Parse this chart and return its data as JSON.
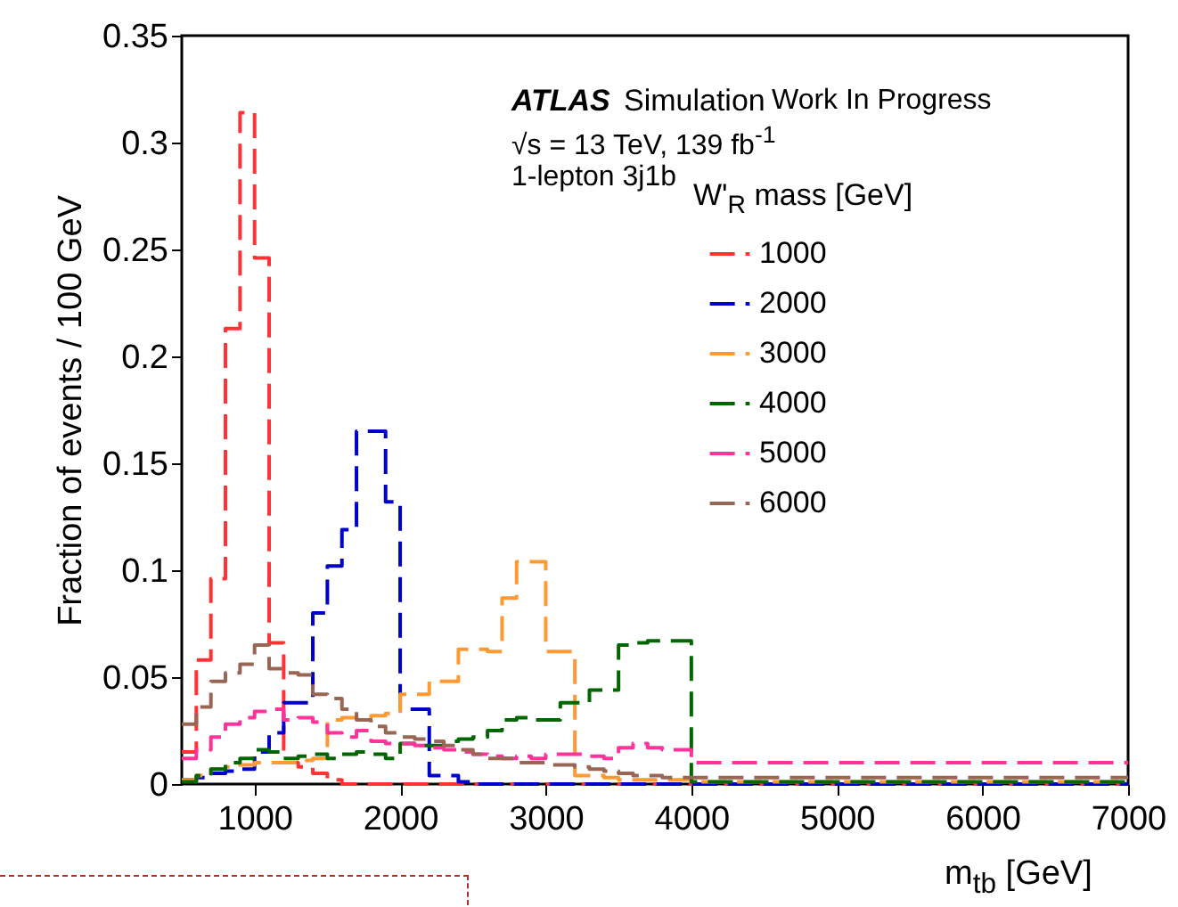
{
  "chart_data": {
    "type": "histogram",
    "xlabel": "m$_{tb}$ [GeV]",
    "ylabel": "Fraction of events / 100 GeV",
    "legend_title": "W'$_{R}$ mass [GeV]",
    "annotations": [
      "ATLAS",
      "Simulation",
      "Work In Progress",
      "√s = 13 TeV, 139 fb$^{-1}$",
      "1-lepton  3j1b"
    ],
    "bins": [
      500,
      600,
      700,
      800,
      900,
      1000,
      1100,
      1200,
      1300,
      1400,
      1500,
      1600,
      1700,
      1800,
      1900,
      2000,
      2100,
      2200,
      2300,
      2400,
      2500,
      2600,
      2700,
      2800,
      2900,
      3000,
      3100,
      3200,
      3300,
      3400,
      3500,
      3600,
      3700,
      3800,
      3900,
      4000,
      7000
    ],
    "series": [
      {
        "name": "1000",
        "color": "#ff3333",
        "values": [
          0.015,
          0.058,
          0.096,
          0.213,
          0.314,
          0.246,
          0.066,
          0.01,
          0.008,
          0.005,
          0.002,
          0,
          0,
          0,
          0,
          0,
          0,
          0,
          0,
          0,
          0,
          0,
          0,
          0,
          0,
          0,
          0,
          0,
          0,
          0,
          0,
          0,
          0,
          0,
          0,
          0
        ]
      },
      {
        "name": "2000",
        "color": "#0000cc",
        "values": [
          0.002,
          0.003,
          0.005,
          0.006,
          0.007,
          0.015,
          0.024,
          0.038,
          0.038,
          0.08,
          0.102,
          0.119,
          0.165,
          0.165,
          0.132,
          0.035,
          0.035,
          0.004,
          0.004,
          0.001,
          0,
          0,
          0,
          0,
          0,
          0,
          0,
          0,
          0,
          0,
          0,
          0,
          0,
          0,
          0,
          0
        ]
      },
      {
        "name": "3000",
        "color": "#ff9933",
        "values": [
          0.002,
          0.004,
          0.007,
          0.008,
          0.009,
          0.01,
          0.01,
          0.01,
          0.011,
          0.012,
          0.03,
          0.031,
          0.031,
          0.032,
          0.033,
          0.042,
          0.042,
          0.048,
          0.048,
          0.063,
          0.063,
          0.062,
          0.087,
          0.104,
          0.104,
          0.062,
          0.062,
          0.004,
          0.004,
          0.003,
          0.002,
          0.002,
          0.002,
          0.002,
          0.002,
          0.001
        ]
      },
      {
        "name": "4000",
        "color": "#006600",
        "values": [
          0.001,
          0.004,
          0.007,
          0.01,
          0.012,
          0.016,
          0.015,
          0.012,
          0.013,
          0.014,
          0.012,
          0.014,
          0.015,
          0.014,
          0.012,
          0.019,
          0.018,
          0.018,
          0.02,
          0.021,
          0.022,
          0.025,
          0.03,
          0.031,
          0.03,
          0.03,
          0.038,
          0.038,
          0.044,
          0.044,
          0.065,
          0.066,
          0.067,
          0.067,
          0.067,
          0.001
        ]
      },
      {
        "name": "5000",
        "color": "#ff3399",
        "values": [
          0.012,
          0.016,
          0.022,
          0.028,
          0.031,
          0.034,
          0.035,
          0.03,
          0.031,
          0.029,
          0.024,
          0.022,
          0.025,
          0.02,
          0.019,
          0.019,
          0.018,
          0.017,
          0.016,
          0.015,
          0.014,
          0.013,
          0.012,
          0.013,
          0.012,
          0.014,
          0.014,
          0.014,
          0.013,
          0.012,
          0.017,
          0.019,
          0.017,
          0.016,
          0.016,
          0.01
        ]
      },
      {
        "name": "6000",
        "color": "#996655",
        "values": [
          0.028,
          0.036,
          0.048,
          0.052,
          0.056,
          0.065,
          0.054,
          0.052,
          0.051,
          0.042,
          0.04,
          0.035,
          0.03,
          0.027,
          0.024,
          0.022,
          0.021,
          0.02,
          0.018,
          0.016,
          0.014,
          0.012,
          0.012,
          0.01,
          0.01,
          0.009,
          0.009,
          0.008,
          0.007,
          0.006,
          0.005,
          0.004,
          0.004,
          0.003,
          0.003,
          0.003
        ]
      }
    ],
    "xlim": [
      500,
      7000
    ],
    "xticks": [
      1000,
      2000,
      3000,
      4000,
      5000,
      6000,
      7000
    ],
    "ylim": [
      0,
      0.35
    ],
    "yticks": [
      0,
      0.05,
      0.1,
      0.15,
      0.2,
      0.25,
      0.3,
      0.35
    ],
    "legend": "top right",
    "line_style": "dashed"
  }
}
